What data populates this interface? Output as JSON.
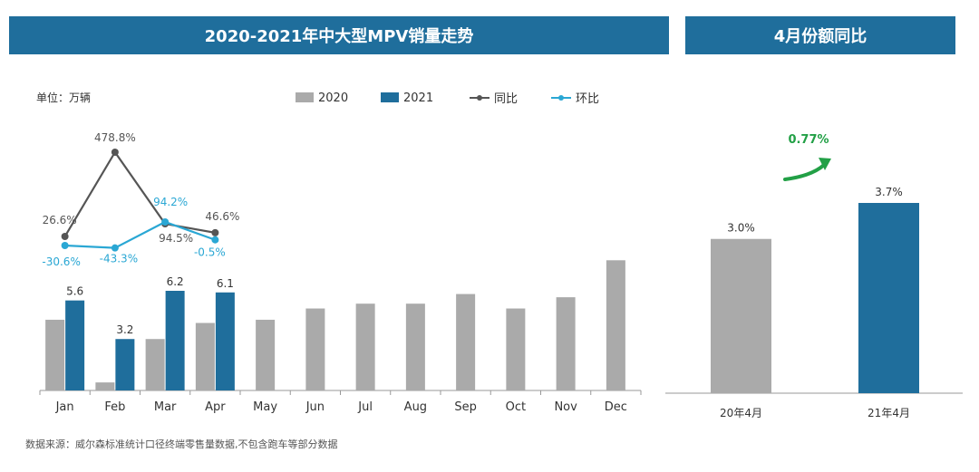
{
  "left_title": "2020-2021年中大型MPV销量走势",
  "right_title": "4月份额同比",
  "unit_label": "单位：万辆",
  "source_note": "数据来源：威尔森标准统计口径终端零售量数据,不包含跑车等部分数据",
  "colors": {
    "s2020": "#aaaaaa",
    "s2021": "#1f6e9c",
    "yoy": "#555555",
    "mom": "#2aa7d4",
    "arrow": "#22a046",
    "title_bg": "#1f6e9c"
  },
  "chart_data": [
    {
      "type": "bar",
      "categories": [
        "Jan",
        "Feb",
        "Mar",
        "Apr",
        "May",
        "Jun",
        "Jul",
        "Aug",
        "Sep",
        "Oct",
        "Nov",
        "Dec"
      ],
      "ylim": [
        0,
        14
      ],
      "series": [
        {
          "name": "2020",
          "values": [
            4.4,
            0.5,
            3.2,
            4.2,
            4.4,
            5.1,
            5.4,
            5.4,
            6.0,
            5.1,
            5.8,
            8.1
          ]
        },
        {
          "name": "2021",
          "values": [
            5.6,
            3.2,
            6.2,
            6.1,
            null,
            null,
            null,
            null,
            null,
            null,
            null,
            null
          ],
          "labels": [
            "5.6",
            "3.2",
            "6.2",
            "6.1"
          ]
        }
      ],
      "lines": [
        {
          "name": "同比",
          "values": [
            26.6,
            478.8,
            94.5,
            46.6
          ],
          "labels": [
            "26.6%",
            "478.8%",
            "94.5%",
            "46.6%"
          ]
        },
        {
          "name": "环比",
          "values": [
            -30.6,
            -43.3,
            94.2,
            -0.5
          ],
          "labels": [
            "-30.6%",
            "-43.3%",
            "94.2%",
            "-0.5%"
          ]
        }
      ]
    },
    {
      "type": "bar",
      "categories": [
        "20年4月",
        "21年4月"
      ],
      "values": [
        3.0,
        3.7
      ],
      "labels": [
        "3.0%",
        "3.7%"
      ],
      "ylim": [
        0,
        4.6
      ],
      "annotation": "0.77%"
    }
  ]
}
